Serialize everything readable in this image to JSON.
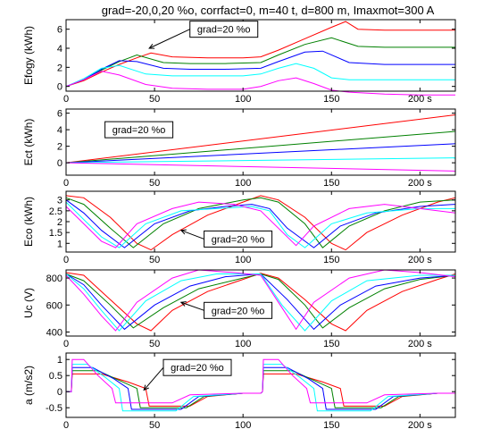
{
  "figure": {
    "title": "grad=-20,0,20 %o, corrfact=0, m=40 t, d=800 m, Imaxmot=300 A"
  },
  "colors": {
    "series": [
      "#ff00ff",
      "#0000ff",
      "#00ffff",
      "#008000",
      "#ff0000"
    ],
    "axis": "#000000",
    "background": "#ffffff"
  },
  "chart_data": [
    {
      "type": "line",
      "ylabel": "Efogy (kWh)",
      "xlim": [
        0,
        220
      ],
      "ylim": [
        -0.5,
        7
      ],
      "xticks": [
        0,
        50,
        100,
        150,
        200
      ],
      "xtick_labels": [
        "0",
        "50",
        "100",
        "150",
        "200 s"
      ],
      "yticks": [
        0,
        2,
        4,
        6
      ],
      "ytick_labels": [
        "0",
        "2",
        "4",
        "6"
      ],
      "annotation": {
        "text": "grad=20 %o",
        "x": 70,
        "y": 6,
        "arrow_to": [
          47,
          4
        ]
      },
      "series": [
        {
          "color": "#ff0000",
          "x": [
            0,
            10,
            20,
            30,
            40,
            48,
            60,
            80,
            100,
            110,
            120,
            135,
            150,
            158,
            165,
            180,
            200,
            220
          ],
          "y": [
            0,
            0.6,
            1.5,
            2.3,
            3.0,
            3.5,
            3.1,
            3.0,
            3.0,
            3.1,
            3.8,
            5.0,
            6.2,
            6.8,
            6.0,
            5.9,
            5.9,
            5.9
          ]
        },
        {
          "color": "#008000",
          "x": [
            0,
            10,
            20,
            30,
            40,
            55,
            70,
            90,
            110,
            120,
            135,
            150,
            165,
            180,
            200,
            220
          ],
          "y": [
            0,
            0.7,
            1.7,
            2.6,
            3.3,
            2.5,
            2.4,
            2.4,
            2.5,
            3.3,
            4.4,
            5.1,
            4.2,
            4.1,
            4.1,
            4.1
          ]
        },
        {
          "color": "#0000ff",
          "x": [
            0,
            10,
            20,
            30,
            40,
            55,
            70,
            90,
            110,
            120,
            135,
            145,
            160,
            180,
            200,
            220
          ],
          "y": [
            0,
            0.7,
            1.8,
            2.7,
            2.6,
            1.9,
            1.8,
            1.8,
            1.9,
            2.6,
            3.6,
            3.7,
            2.5,
            2.3,
            2.3,
            2.3
          ]
        },
        {
          "color": "#00ffff",
          "x": [
            0,
            10,
            20,
            30,
            45,
            60,
            80,
            100,
            110,
            120,
            130,
            140,
            150,
            160,
            180,
            200,
            220
          ],
          "y": [
            0,
            0.8,
            1.9,
            2.2,
            1.3,
            1.1,
            1.1,
            1.1,
            1.3,
            1.9,
            2.4,
            1.9,
            0.9,
            0.7,
            0.7,
            0.7,
            0.7
          ]
        },
        {
          "color": "#ff00ff",
          "x": [
            0,
            10,
            20,
            30,
            45,
            60,
            80,
            100,
            110,
            120,
            130,
            140,
            150,
            160,
            180,
            200,
            220
          ],
          "y": [
            0,
            0.7,
            1.6,
            1.2,
            0.2,
            -0.2,
            -0.3,
            -0.3,
            0.0,
            0.6,
            0.9,
            0.3,
            -0.4,
            -0.6,
            -0.8,
            -0.9,
            -0.9
          ]
        }
      ]
    },
    {
      "type": "line",
      "ylabel": "Ect (kWh)",
      "xlim": [
        0,
        220
      ],
      "ylim": [
        -1.5,
        6.5
      ],
      "xticks": [
        0,
        50,
        100,
        150,
        200
      ],
      "xtick_labels": [
        "0",
        "50",
        "100",
        "150",
        "200 s"
      ],
      "yticks": [
        0,
        2,
        4,
        6
      ],
      "ytick_labels": [
        "0",
        "2",
        "4",
        "6"
      ],
      "annotation": {
        "text": "grad=20 %o",
        "x": 22,
        "y": 4,
        "arrow_to": null
      },
      "series": [
        {
          "color": "#ff0000",
          "x": [
            0,
            220
          ],
          "y": [
            0,
            5.8
          ]
        },
        {
          "color": "#008000",
          "x": [
            0,
            220
          ],
          "y": [
            0,
            3.8
          ]
        },
        {
          "color": "#0000ff",
          "x": [
            0,
            220
          ],
          "y": [
            0,
            2.3
          ]
        },
        {
          "color": "#00ffff",
          "x": [
            0,
            220
          ],
          "y": [
            0,
            0.6
          ]
        },
        {
          "color": "#ff00ff",
          "x": [
            0,
            220
          ],
          "y": [
            0,
            -1.0
          ]
        }
      ]
    },
    {
      "type": "line",
      "ylabel": "Eco (kWh)",
      "xlim": [
        0,
        220
      ],
      "ylim": [
        0.6,
        3.4
      ],
      "xticks": [
        0,
        50,
        100,
        150,
        200
      ],
      "xtick_labels": [
        "0",
        "50",
        "100",
        "150",
        "200 s"
      ],
      "yticks": [
        1,
        1.5,
        2,
        2.5,
        3
      ],
      "ytick_labels": [
        "1",
        "1.5",
        "2",
        "2.5",
        "3"
      ],
      "annotation": {
        "text": "grad=20 %o",
        "x": 78,
        "y": 1.2,
        "arrow_to": [
          65,
          1.6
        ]
      },
      "series": [
        {
          "color": "#ff0000",
          "x": [
            0,
            10,
            25,
            40,
            48,
            60,
            80,
            100,
            110,
            120,
            135,
            150,
            158,
            170,
            190,
            210,
            220
          ],
          "y": [
            3.2,
            3.1,
            2.2,
            1.0,
            0.7,
            1.4,
            2.3,
            2.9,
            3.2,
            3.0,
            2.2,
            1.0,
            0.7,
            1.5,
            2.3,
            2.9,
            3.1
          ]
        },
        {
          "color": "#008000",
          "x": [
            0,
            10,
            25,
            38,
            55,
            75,
            100,
            110,
            120,
            135,
            145,
            160,
            180,
            200,
            220
          ],
          "y": [
            3.1,
            2.8,
            1.7,
            0.8,
            1.9,
            2.6,
            3.0,
            3.1,
            2.9,
            1.9,
            0.8,
            1.8,
            2.5,
            2.9,
            3.0
          ]
        },
        {
          "color": "#0000ff",
          "x": [
            0,
            10,
            20,
            33,
            50,
            70,
            90,
            105,
            115,
            125,
            140,
            155,
            175,
            200,
            220
          ],
          "y": [
            3.0,
            2.4,
            1.6,
            0.8,
            1.9,
            2.5,
            2.7,
            2.8,
            2.6,
            1.7,
            0.8,
            1.8,
            2.4,
            2.7,
            2.8
          ]
        },
        {
          "color": "#00ffff",
          "x": [
            0,
            10,
            20,
            30,
            45,
            65,
            85,
            105,
            115,
            125,
            135,
            150,
            170,
            200,
            220
          ],
          "y": [
            2.9,
            2.1,
            1.3,
            0.8,
            1.9,
            2.5,
            2.6,
            2.7,
            2.5,
            1.4,
            0.8,
            1.9,
            2.4,
            2.6,
            2.6
          ]
        },
        {
          "color": "#ff00ff",
          "x": [
            0,
            10,
            20,
            28,
            40,
            60,
            75,
            95,
            110,
            120,
            130,
            140,
            160,
            180,
            200,
            220
          ],
          "y": [
            2.7,
            1.9,
            1.1,
            0.8,
            1.9,
            2.6,
            2.9,
            2.8,
            2.5,
            1.7,
            0.9,
            1.8,
            2.6,
            2.8,
            2.6,
            2.4
          ]
        }
      ]
    },
    {
      "type": "line",
      "ylabel": "Uc (V)",
      "xlim": [
        0,
        220
      ],
      "ylim": [
        370,
        860
      ],
      "xticks": [
        0,
        50,
        100,
        150,
        200
      ],
      "xtick_labels": [
        "0",
        "50",
        "100",
        "150",
        "200 s"
      ],
      "yticks": [
        400,
        600,
        800
      ],
      "ytick_labels": [
        "400",
        "600",
        "800"
      ],
      "annotation": {
        "text": "grad=20 %o",
        "x": 78,
        "y": 560,
        "arrow_to": [
          65,
          620
        ]
      },
      "series": [
        {
          "color": "#ff0000",
          "x": [
            0,
            10,
            25,
            40,
            48,
            60,
            80,
            100,
            110,
            120,
            135,
            150,
            158,
            170,
            190,
            210,
            220
          ],
          "y": [
            840,
            820,
            640,
            460,
            410,
            560,
            700,
            790,
            835,
            800,
            640,
            460,
            410,
            560,
            700,
            790,
            830
          ]
        },
        {
          "color": "#008000",
          "x": [
            0,
            10,
            25,
            38,
            55,
            75,
            100,
            110,
            120,
            135,
            145,
            160,
            180,
            200,
            220
          ],
          "y": [
            830,
            780,
            600,
            430,
            580,
            720,
            800,
            830,
            790,
            600,
            430,
            580,
            720,
            790,
            820
          ]
        },
        {
          "color": "#0000ff",
          "x": [
            0,
            10,
            20,
            33,
            50,
            70,
            90,
            110,
            125,
            140,
            155,
            175,
            200,
            220
          ],
          "y": [
            830,
            750,
            600,
            420,
            600,
            740,
            810,
            830,
            640,
            420,
            600,
            740,
            800,
            820
          ]
        },
        {
          "color": "#00ffff",
          "x": [
            0,
            10,
            20,
            30,
            45,
            65,
            85,
            110,
            122,
            135,
            150,
            170,
            200,
            220
          ],
          "y": [
            830,
            720,
            560,
            410,
            630,
            780,
            830,
            830,
            600,
            410,
            630,
            780,
            820,
            820
          ]
        },
        {
          "color": "#ff00ff",
          "x": [
            0,
            10,
            20,
            28,
            40,
            60,
            75,
            95,
            110,
            120,
            130,
            140,
            160,
            180,
            200,
            220
          ],
          "y": [
            820,
            680,
            520,
            410,
            620,
            800,
            860,
            840,
            820,
            620,
            420,
            620,
            800,
            860,
            840,
            810
          ]
        }
      ]
    },
    {
      "type": "line",
      "ylabel": "a (m/s2)",
      "xlim": [
        0,
        220
      ],
      "ylim": [
        -0.8,
        1.2
      ],
      "xticks": [
        0,
        50,
        100,
        150,
        200
      ],
      "xtick_labels": [
        "0",
        "50",
        "100",
        "150",
        "200 s"
      ],
      "yticks": [
        -0.5,
        0,
        0.5,
        1
      ],
      "ytick_labels": [
        "-0.5",
        "0",
        "0.5",
        "1"
      ],
      "annotation": {
        "text": "grad=20 %o",
        "x": 55,
        "y": 0.75,
        "arrow_to": [
          44,
          0.05
        ]
      },
      "series": [
        {
          "color": "#ff0000",
          "x": [
            0,
            3,
            3.5,
            20,
            35,
            45,
            47,
            60,
            70,
            80,
            100,
            110,
            111,
            111.5,
            130,
            145,
            155,
            157,
            170,
            180,
            190,
            210,
            220
          ],
          "y": [
            0,
            0,
            0.55,
            0.55,
            0.3,
            0.1,
            -0.45,
            -0.45,
            -0.45,
            -0.15,
            -0.05,
            -0.05,
            0,
            0.55,
            0.55,
            0.3,
            0.1,
            -0.45,
            -0.45,
            -0.45,
            -0.15,
            -0.05,
            -0.05
          ]
        },
        {
          "color": "#008000",
          "x": [
            0,
            3,
            3.5,
            18,
            30,
            40,
            42,
            58,
            68,
            78,
            100,
            110,
            111,
            111.5,
            128,
            140,
            150,
            152,
            168,
            178,
            188,
            210,
            220
          ],
          "y": [
            0,
            0,
            0.65,
            0.65,
            0.35,
            0.1,
            -0.5,
            -0.5,
            -0.5,
            -0.15,
            -0.05,
            -0.05,
            0,
            0.65,
            0.65,
            0.35,
            0.1,
            -0.5,
            -0.5,
            -0.5,
            -0.15,
            -0.05,
            -0.05
          ]
        },
        {
          "color": "#0000ff",
          "x": [
            0,
            3,
            3.5,
            15,
            27,
            35,
            37,
            55,
            65,
            75,
            100,
            110,
            111,
            111.5,
            125,
            137,
            145,
            147,
            165,
            175,
            185,
            210,
            220
          ],
          "y": [
            0,
            0,
            0.75,
            0.75,
            0.4,
            0.1,
            -0.55,
            -0.55,
            -0.55,
            -0.15,
            -0.05,
            -0.05,
            0,
            0.75,
            0.75,
            0.4,
            0.1,
            -0.55,
            -0.55,
            -0.55,
            -0.15,
            -0.05,
            -0.05
          ]
        },
        {
          "color": "#00ffff",
          "x": [
            0,
            3,
            3.5,
            12,
            22,
            30,
            32,
            52,
            62,
            72,
            100,
            110,
            111,
            111.5,
            122,
            132,
            140,
            142,
            162,
            172,
            182,
            210,
            220
          ],
          "y": [
            0,
            0,
            0.85,
            0.85,
            0.45,
            0.1,
            -0.6,
            -0.6,
            -0.6,
            -0.15,
            -0.05,
            -0.05,
            0,
            0.85,
            0.85,
            0.45,
            0.1,
            -0.6,
            -0.6,
            -0.6,
            -0.15,
            -0.05,
            -0.05
          ]
        },
        {
          "color": "#ff00ff",
          "x": [
            0,
            3,
            3.5,
            10,
            18,
            26,
            28,
            45,
            60,
            70,
            100,
            110,
            111,
            111.5,
            120,
            128,
            136,
            138,
            155,
            170,
            180,
            210,
            220
          ],
          "y": [
            0,
            0,
            1.0,
            1.0,
            0.5,
            0.1,
            -0.35,
            -0.35,
            -0.35,
            -0.1,
            -0.05,
            -0.05,
            0,
            1.0,
            1.0,
            0.5,
            0.1,
            -0.35,
            -0.35,
            -0.35,
            -0.1,
            -0.05,
            -0.05
          ]
        }
      ]
    }
  ]
}
